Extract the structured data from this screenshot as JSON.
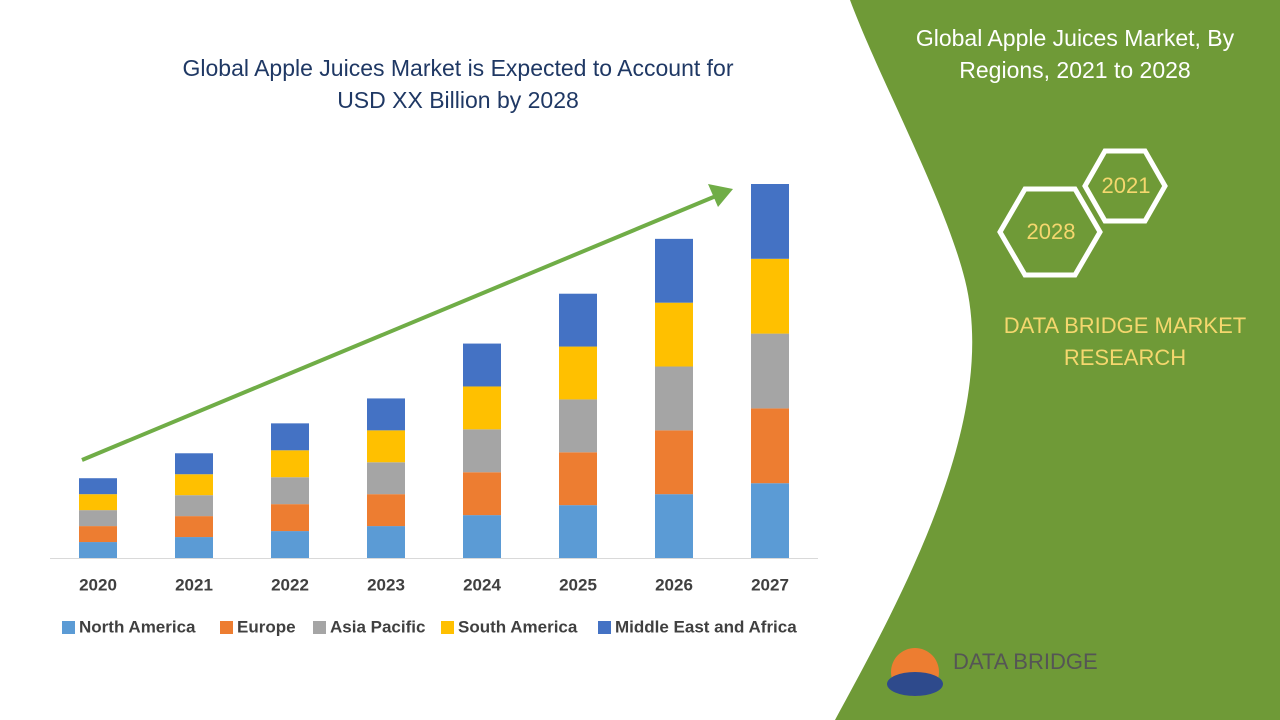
{
  "chart_data": {
    "type": "stacked-bar",
    "title": "Global Apple Juices Market is Expected to Account for USD XX Billion by 2028",
    "categories": [
      "2020",
      "2021",
      "2022",
      "2023",
      "2024",
      "2025",
      "2026",
      "2027"
    ],
    "series": [
      {
        "name": "North America",
        "color": "#5b9bd5",
        "values": [
          1.6,
          2.1,
          2.7,
          3.2,
          4.3,
          5.3,
          6.4,
          7.5
        ]
      },
      {
        "name": "Europe",
        "color": "#ed7d31",
        "values": [
          1.6,
          2.1,
          2.7,
          3.2,
          4.3,
          5.3,
          6.4,
          7.5
        ]
      },
      {
        "name": "Asia Pacific",
        "color": "#a5a5a5",
        "values": [
          1.6,
          2.1,
          2.7,
          3.2,
          4.3,
          5.3,
          6.4,
          7.5
        ]
      },
      {
        "name": "South America",
        "color": "#ffc000",
        "values": [
          1.6,
          2.1,
          2.7,
          3.2,
          4.3,
          5.3,
          6.4,
          7.5
        ]
      },
      {
        "name": "Middle East and Africa",
        "color": "#4472c4",
        "values": [
          1.6,
          2.1,
          2.7,
          3.2,
          4.3,
          5.3,
          6.4,
          7.5
        ]
      }
    ]
  },
  "panel": {
    "title": "Global Apple Juices Market, By Regions, 2021 to 2028",
    "hexagons": [
      "2021",
      "2028"
    ],
    "brand": "DATA BRIDGE MARKET RESEARCH",
    "logo": "DATA BRIDGE"
  }
}
